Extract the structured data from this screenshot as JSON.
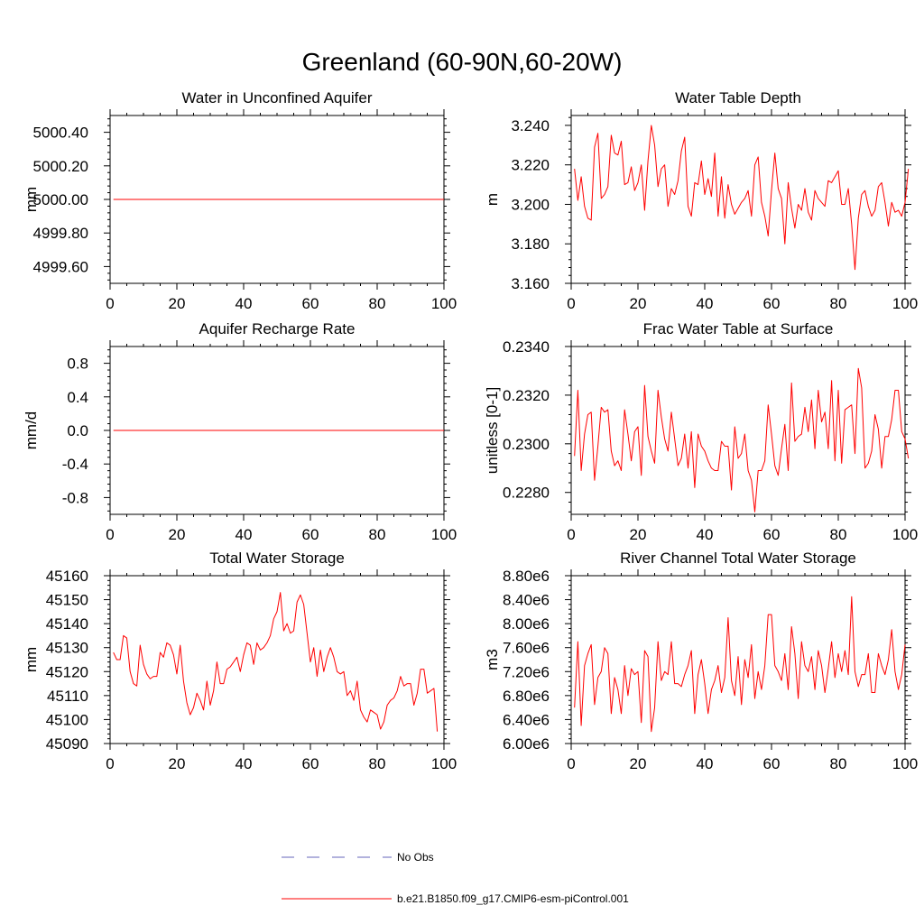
{
  "figure": {
    "title": "Greenland (60-90N,60-20W)",
    "line_color": "#ff0000",
    "obs_color": "#6666bb"
  },
  "legend": {
    "obs_label": "No Obs",
    "model_label": "b.e21.B1850.f09_g17.CMIP6-esm-piControl.001"
  },
  "chart_data": [
    {
      "id": "aquifer-water",
      "type": "line",
      "title": "Water in Unconfined Aquifer",
      "ylabel": "mm",
      "xlim": [
        0,
        100
      ],
      "ylim": [
        4999.5,
        5000.5
      ],
      "xticks": [
        0,
        20,
        40,
        60,
        80,
        100
      ],
      "yticks": [
        4999.6,
        4999.8,
        5000.0,
        5000.2,
        5000.4
      ],
      "ytick_labels": [
        "4999.60",
        "4999.80",
        "5000.00",
        "5000.20",
        "5000.40"
      ],
      "x_start": 1,
      "x_end": 100,
      "series": [
        {
          "name": "b.e21.B1850.f09_g17.CMIP6-esm-piControl.001",
          "constant": 5000.0
        }
      ]
    },
    {
      "id": "water-table-depth",
      "type": "line",
      "title": "Water Table Depth",
      "ylabel": "m",
      "xlim": [
        0,
        100
      ],
      "ylim": [
        3.16,
        3.245
      ],
      "xticks": [
        0,
        20,
        40,
        60,
        80,
        100
      ],
      "yticks": [
        3.16,
        3.18,
        3.2,
        3.22,
        3.24
      ],
      "ytick_labels": [
        "3.160",
        "3.180",
        "3.200",
        "3.220",
        "3.240"
      ],
      "x_start": 1,
      "series": [
        {
          "name": "b.e21.B1850.f09_g17.CMIP6-esm-piControl.001",
          "values": [
            3.218,
            3.202,
            3.214,
            3.199,
            3.193,
            3.192,
            3.229,
            3.236,
            3.203,
            3.205,
            3.209,
            3.235,
            3.226,
            3.225,
            3.232,
            3.21,
            3.211,
            3.219,
            3.207,
            3.211,
            3.22,
            3.197,
            3.222,
            3.24,
            3.23,
            3.209,
            3.218,
            3.22,
            3.199,
            3.208,
            3.205,
            3.212,
            3.227,
            3.234,
            3.199,
            3.194,
            3.211,
            3.21,
            3.222,
            3.205,
            3.213,
            3.204,
            3.226,
            3.194,
            3.214,
            3.193,
            3.21,
            3.2,
            3.195,
            3.198,
            3.201,
            3.203,
            3.207,
            3.194,
            3.22,
            3.224,
            3.201,
            3.194,
            3.184,
            3.207,
            3.226,
            3.208,
            3.203,
            3.18,
            3.211,
            3.198,
            3.188,
            3.2,
            3.197,
            3.208,
            3.196,
            3.192,
            3.207,
            3.203,
            3.201,
            3.199,
            3.212,
            3.211,
            3.214,
            3.217,
            3.2,
            3.2,
            3.208,
            3.19,
            3.167,
            3.193,
            3.205,
            3.207,
            3.199,
            3.194,
            3.197,
            3.209,
            3.211,
            3.201,
            3.189,
            3.201,
            3.196,
            3.197,
            3.194,
            3.201,
            3.218
          ]
        }
      ]
    },
    {
      "id": "recharge-rate",
      "type": "line",
      "title": "Aquifer Recharge Rate",
      "ylabel": "mm/d",
      "xlim": [
        0,
        100
      ],
      "ylim": [
        -1.0,
        1.0
      ],
      "xticks": [
        0,
        20,
        40,
        60,
        80,
        100
      ],
      "yticks": [
        -0.8,
        -0.4,
        0.0,
        0.4,
        0.8
      ],
      "ytick_labels": [
        "-0.8",
        "-0.4",
        "0.0",
        "0.4",
        "0.8"
      ],
      "x_start": 1,
      "x_end": 100,
      "series": [
        {
          "name": "b.e21.B1850.f09_g17.CMIP6-esm-piControl.001",
          "constant": 0.0
        }
      ]
    },
    {
      "id": "frac-water-table",
      "type": "line",
      "title": "Frac Water Table at Surface",
      "ylabel": "unitless [0-1]",
      "xlim": [
        0,
        100
      ],
      "ylim": [
        0.2271,
        0.234
      ],
      "xticks": [
        0,
        20,
        40,
        60,
        80,
        100
      ],
      "yticks": [
        0.228,
        0.23,
        0.232,
        0.234
      ],
      "ytick_labels": [
        "0.2280",
        "0.2300",
        "0.2320",
        "0.2340"
      ],
      "x_start": 1,
      "series": [
        {
          "name": "b.e21.B1850.f09_g17.CMIP6-esm-piControl.001",
          "values": [
            0.2295,
            0.2322,
            0.2289,
            0.2304,
            0.2312,
            0.2313,
            0.2285,
            0.2299,
            0.2315,
            0.2313,
            0.2314,
            0.2297,
            0.2291,
            0.2293,
            0.2289,
            0.2314,
            0.2304,
            0.2293,
            0.2305,
            0.2307,
            0.2287,
            0.2324,
            0.2303,
            0.2297,
            0.2292,
            0.2322,
            0.2311,
            0.2302,
            0.2297,
            0.2313,
            0.2302,
            0.2291,
            0.2294,
            0.2304,
            0.229,
            0.2305,
            0.2282,
            0.2304,
            0.2299,
            0.2297,
            0.2293,
            0.229,
            0.2289,
            0.2289,
            0.2301,
            0.2299,
            0.2299,
            0.2281,
            0.2307,
            0.2294,
            0.2296,
            0.2304,
            0.2289,
            0.2285,
            0.2272,
            0.2289,
            0.2289,
            0.2293,
            0.2316,
            0.2304,
            0.2291,
            0.2287,
            0.2298,
            0.2308,
            0.2289,
            0.2325,
            0.2301,
            0.2303,
            0.2304,
            0.2315,
            0.2305,
            0.2318,
            0.2298,
            0.2322,
            0.2309,
            0.2313,
            0.2298,
            0.2326,
            0.2293,
            0.2322,
            0.2292,
            0.2314,
            0.2315,
            0.2316,
            0.2296,
            0.2331,
            0.2323,
            0.229,
            0.2292,
            0.2297,
            0.2312,
            0.2306,
            0.229,
            0.2303,
            0.2303,
            0.231,
            0.2322,
            0.2322,
            0.2305,
            0.2302,
            0.2294
          ]
        }
      ]
    },
    {
      "id": "total-water-storage",
      "type": "line",
      "title": "Total Water Storage",
      "ylabel": "mm",
      "xlim": [
        0,
        100
      ],
      "ylim": [
        45090,
        45160
      ],
      "xticks": [
        0,
        20,
        40,
        60,
        80,
        100
      ],
      "yticks": [
        45090,
        45100,
        45110,
        45120,
        45130,
        45140,
        45150,
        45160
      ],
      "ytick_labels": [
        "45090",
        "45100",
        "45110",
        "45120",
        "45130",
        "45140",
        "45150",
        "45160"
      ],
      "x_start": 1,
      "series": [
        {
          "name": "b.e21.B1850.f09_g17.CMIP6-esm-piControl.001",
          "values": [
            45128,
            45125,
            45125,
            45135,
            45134,
            45120,
            45115,
            45114,
            45131,
            45123,
            45119,
            45117,
            45118,
            45118,
            45128,
            45126,
            45132,
            45131,
            45127,
            45119,
            45131,
            45116,
            45107,
            45102,
            45105,
            45111,
            45108,
            45104,
            45116,
            45106,
            45112,
            45124,
            45115,
            45115,
            45121,
            45122,
            45124,
            45126,
            45120,
            45127,
            45132,
            45131,
            45123,
            45132,
            45129,
            45130,
            45132,
            45135,
            45142,
            45145,
            45153,
            45137,
            45140,
            45136,
            45137,
            45149,
            45152,
            45148,
            45136,
            45124,
            45130,
            45118,
            45129,
            45120,
            45126,
            45130,
            45126,
            45120,
            45119,
            45120,
            45110,
            45112,
            45108,
            45116,
            45104,
            45101,
            45099,
            45104,
            45103,
            45102,
            45096,
            45099,
            45106,
            45108,
            45109,
            45112,
            45118,
            45114,
            45115,
            45115,
            45106,
            45111,
            45121,
            45121,
            45111,
            45112,
            45113,
            45095
          ]
        }
      ]
    },
    {
      "id": "river-channel-storage",
      "type": "line",
      "title": "River Channel Total Water Storage",
      "ylabel": "m3",
      "xlim": [
        0,
        100
      ],
      "ylim": [
        6000000,
        8800000
      ],
      "xticks": [
        0,
        20,
        40,
        60,
        80,
        100
      ],
      "yticks": [
        6000000,
        6400000,
        6800000,
        7200000,
        7600000,
        8000000,
        8400000,
        8800000
      ],
      "ytick_labels": [
        "6.00e6",
        "6.40e6",
        "6.80e6",
        "7.20e6",
        "7.60e6",
        "8.00e6",
        "8.40e6",
        "8.80e6"
      ],
      "x_start": 1,
      "series": [
        {
          "name": "b.e21.B1850.f09_g17.CMIP6-esm-piControl.001",
          "values": [
            6600000,
            7700000,
            6300000,
            7300000,
            7500000,
            7650000,
            6650000,
            7100000,
            7200000,
            7600000,
            7500000,
            6500000,
            7100000,
            6900000,
            6500000,
            7300000,
            6800000,
            7250000,
            7150000,
            7200000,
            6350000,
            7550000,
            7450000,
            6200000,
            6600000,
            7700000,
            7050000,
            7200000,
            7150000,
            7700000,
            7000000,
            7000000,
            6950000,
            7150000,
            7300000,
            7550000,
            6500000,
            7150000,
            7400000,
            7000000,
            6500000,
            6900000,
            7050000,
            7300000,
            6850000,
            7100000,
            8100000,
            7050000,
            6800000,
            7450000,
            6650000,
            7400000,
            7100000,
            7650000,
            6750000,
            7200000,
            6900000,
            7300000,
            8150000,
            8150000,
            7300000,
            7200000,
            7050000,
            7500000,
            6900000,
            7950000,
            7500000,
            6750000,
            7700000,
            7300000,
            7200000,
            7450000,
            6900000,
            7550000,
            7300000,
            6850000,
            7250000,
            7700000,
            7100000,
            7500000,
            7200000,
            7550000,
            7150000,
            8450000,
            7200000,
            6950000,
            7150000,
            7150000,
            7500000,
            6850000,
            6850000,
            7500000,
            7300000,
            7150000,
            7400000,
            7900000,
            7200000,
            6900000,
            7150000,
            7650000
          ]
        }
      ]
    }
  ]
}
